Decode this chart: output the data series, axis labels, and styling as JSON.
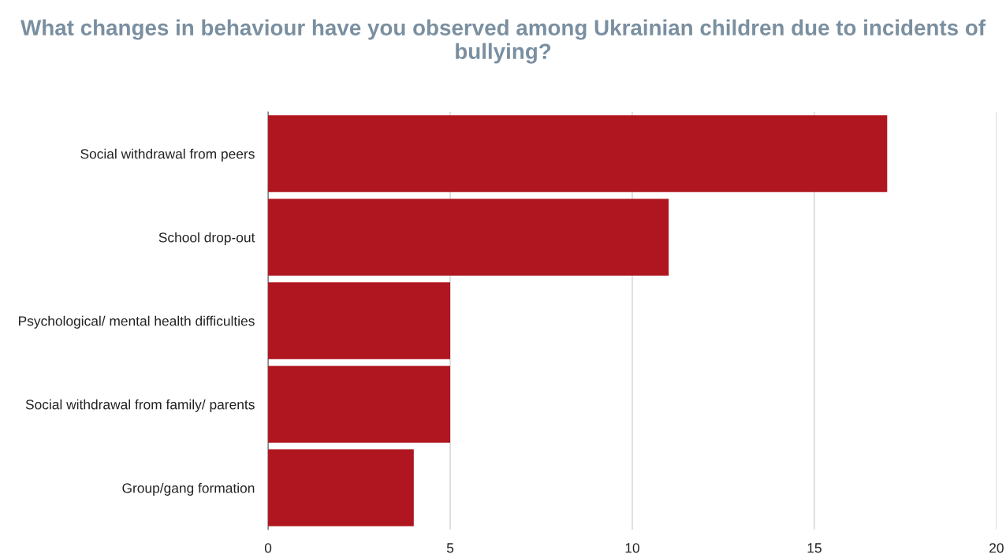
{
  "chart_data": {
    "type": "bar",
    "orientation": "horizontal",
    "title": "What changes in behaviour have you observed among Ukrainian children due to incidents of bullying?",
    "categories": [
      "Social withdrawal from peers",
      "School drop-out",
      "Psychological/ mental health difficulties",
      "Social withdrawal from family/ parents",
      "Group/gang formation"
    ],
    "values": [
      17,
      11,
      5,
      5,
      4
    ],
    "color": "#b0161f",
    "xlim": [
      0,
      20
    ],
    "xticks": [
      0,
      5,
      10,
      15,
      20
    ],
    "grid": "x"
  }
}
